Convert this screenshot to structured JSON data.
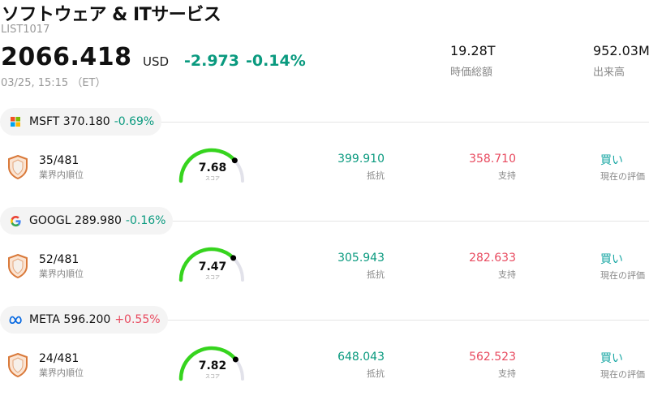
{
  "header": {
    "title": "ソフトウェア & ITサービス",
    "code": "LIST1017",
    "price": "2066.418",
    "currency": "USD",
    "change": "-2.973",
    "change_pct": "-0.14%",
    "timestamp": "03/25, 15:15 （ET）"
  },
  "stats": [
    {
      "value": "19.28T",
      "label": "時価総額"
    },
    {
      "value": "952.03M",
      "label": "出来高"
    }
  ],
  "labels": {
    "rank": "業界内順位",
    "score": "スコア",
    "resistance": "抵抗",
    "support": "支持",
    "rating": "現在の評価"
  },
  "stocks": [
    {
      "ticker": "MSFT",
      "price": "370.180",
      "change": "-0.69%",
      "direction": "down",
      "logo": "microsoft-logo",
      "rank": "35/481",
      "score": "7.68",
      "score_value": 7.68,
      "resistance": "399.910",
      "support": "358.710",
      "rating": "買い"
    },
    {
      "ticker": "GOOGL",
      "price": "289.980",
      "change": "-0.16%",
      "direction": "down",
      "logo": "google-logo",
      "rank": "52/481",
      "score": "7.47",
      "score_value": 7.47,
      "resistance": "305.943",
      "support": "282.633",
      "rating": "買い"
    },
    {
      "ticker": "META",
      "price": "596.200",
      "change": "+0.55%",
      "direction": "up",
      "logo": "meta-logo",
      "rank": "24/481",
      "score": "7.82",
      "score_value": 7.82,
      "resistance": "648.043",
      "support": "562.523",
      "rating": "買い"
    }
  ],
  "colors": {
    "negative": "#0a9a7f",
    "positive": "#e84a5f",
    "rating": "#1aa7a4",
    "gauge_fill": "#36d41e",
    "gauge_track": "#e2e2ea",
    "shield": "#d9793a"
  }
}
